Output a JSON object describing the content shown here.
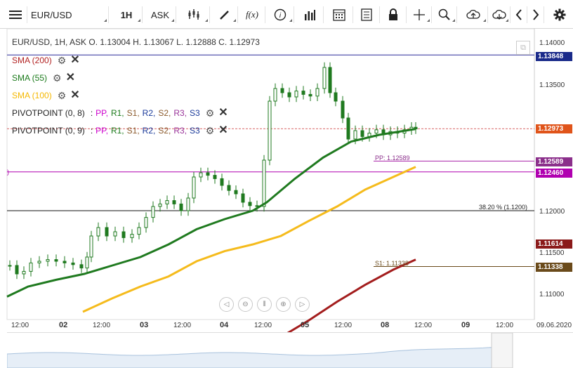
{
  "toolbar": {
    "symbol": "EUR/USD",
    "timeframe": "1H",
    "price_type": "ASK",
    "fx_label": "f(x)"
  },
  "header": {
    "ohlc": "EUR/USD, 1H, ASK   O. 1.13004 H. 1.13067 L. 1.12888 C. 1.12973"
  },
  "indicators": [
    {
      "label": "SMA (200)",
      "color": "#b22222"
    },
    {
      "label": "SMA (55)",
      "color": "#1a7a1a"
    },
    {
      "label": "SMA (100)",
      "color": "#f5b800"
    }
  ],
  "pivot_rows": [
    {
      "label": "PIVOTPOINT (0, 8)",
      "sep": ":",
      "levels": [
        "PP,",
        "R1,",
        "S1,",
        "R2,",
        "S2,",
        "R3,",
        "S3"
      ]
    },
    {
      "label": "PIVOTPOINT (0, 9)",
      "sep": ":",
      "levels": [
        "PP,",
        "R1,",
        "S1,",
        "R2,",
        "S2,",
        "R3,",
        "S3"
      ]
    }
  ],
  "pivot_colors": [
    "#cc00cc",
    "#1a7a1a",
    "#8b5a2b",
    "#1a3a9a",
    "#8b5a2b",
    "#993399",
    "#1a3a9a"
  ],
  "yaxis": {
    "ticks": [
      "1.14000",
      "1.13500",
      "1.12000",
      "1.11500",
      "1.11000"
    ],
    "labels": [
      {
        "value": "1.13848",
        "color": "#1a2a8a"
      },
      {
        "value": "1.12973",
        "color": "#e0541a"
      },
      {
        "value": "1.12589",
        "color": "#8b2f8b"
      },
      {
        "value": "1.12460",
        "color": "#b000b0"
      },
      {
        "value": "1.11614",
        "color": "#8b1a1a"
      },
      {
        "value": "1.11338",
        "color": "#6a4a1a"
      }
    ]
  },
  "xaxis": {
    "ticks": [
      "12:00",
      "02",
      "12:00",
      "03",
      "12:00",
      "04",
      "12:00",
      "05",
      "12:00",
      "08",
      "12:00",
      "09",
      "12:00",
      "09.06.2020"
    ]
  },
  "annotations": {
    "pp": "PP: 1.12589",
    "s1": "S1: 1.11338",
    "fib": "38.20 % (1.1200)"
  },
  "colors": {
    "sma200": "#a31d1d",
    "sma55": "#1f7a1f",
    "sma100": "#f5bb1c",
    "candle": "#1f7a1f",
    "price_line": "#cc3333",
    "r_line": "#2a2a9a",
    "pp_line": "#aa22aa",
    "s1_line": "#6a4a1a"
  }
}
